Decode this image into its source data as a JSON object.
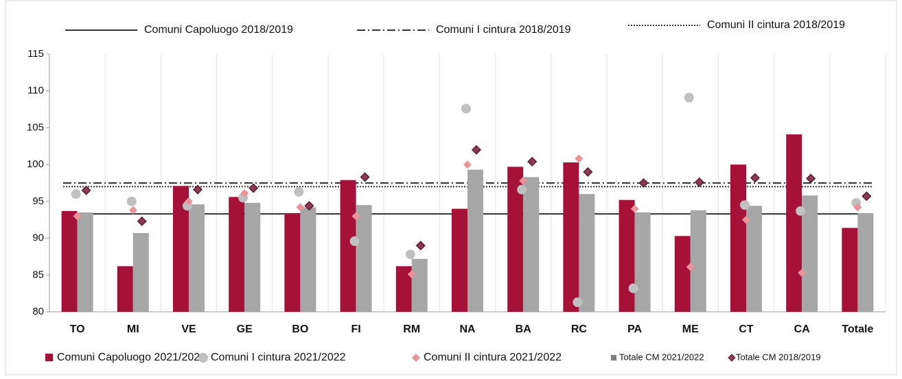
{
  "chart_data": {
    "type": "bar",
    "categories": [
      "TO",
      "MI",
      "VE",
      "GE",
      "BO",
      "FI",
      "RM",
      "NA",
      "BA",
      "RC",
      "PA",
      "ME",
      "CT",
      "CA",
      "Totale"
    ],
    "ylim": [
      80,
      115
    ],
    "yticks": [
      80,
      85,
      90,
      95,
      100,
      105,
      110,
      115
    ],
    "grid": "x",
    "series": [
      {
        "name": "Comuni Capoluogo 2021/2022",
        "kind": "bar",
        "color": "#a6113a",
        "values": [
          93.7,
          86.2,
          97.1,
          95.6,
          93.4,
          97.9,
          86.2,
          94.0,
          99.7,
          100.3,
          95.2,
          90.3,
          100.0,
          104.1,
          91.4
        ]
      },
      {
        "name": "Comuni I cintura 2021/2022",
        "kind": "circle",
        "color": "#c0c0c0",
        "values": [
          96.0,
          95.0,
          94.4,
          95.5,
          96.3,
          89.6,
          87.8,
          107.6,
          96.6,
          81.3,
          83.2,
          109.1,
          94.5,
          93.7,
          94.8
        ]
      },
      {
        "name": "Comuni II cintura 2021/2022",
        "kind": "diamond",
        "color": "#e8949a",
        "values": [
          93.0,
          93.8,
          95.0,
          96.1,
          94.2,
          93.0,
          85.1,
          100.0,
          97.8,
          100.8,
          94.0,
          86.1,
          92.5,
          85.3,
          94.2
        ]
      },
      {
        "name": "Totale CM 2021/2022",
        "kind": "bar",
        "color": "#a6a6a6",
        "values": [
          93.5,
          90.7,
          94.6,
          94.8,
          94.2,
          94.5,
          87.2,
          99.3,
          98.3,
          96.0,
          93.5,
          93.8,
          94.4,
          95.8,
          93.4
        ]
      },
      {
        "name": "Totale CM 2018/2019",
        "kind": "diamond",
        "color": "#8b3a52",
        "values": [
          96.5,
          92.3,
          96.6,
          96.8,
          94.4,
          98.3,
          89.0,
          102.0,
          100.4,
          99.0,
          97.5,
          97.6,
          98.2,
          98.1,
          95.7
        ]
      }
    ],
    "reference_lines": [
      {
        "name": "Comuni Capoluogo 2018/2019",
        "value": 93.3,
        "style": "solid",
        "color": "#333333"
      },
      {
        "name": "Comuni I cintura 2018/2019",
        "value": 97.5,
        "style": "dashdot",
        "color": "#333333"
      },
      {
        "name": "Comuni II cintura 2018/2019",
        "value": 97.0,
        "style": "dotted",
        "color": "#333333"
      }
    ]
  }
}
